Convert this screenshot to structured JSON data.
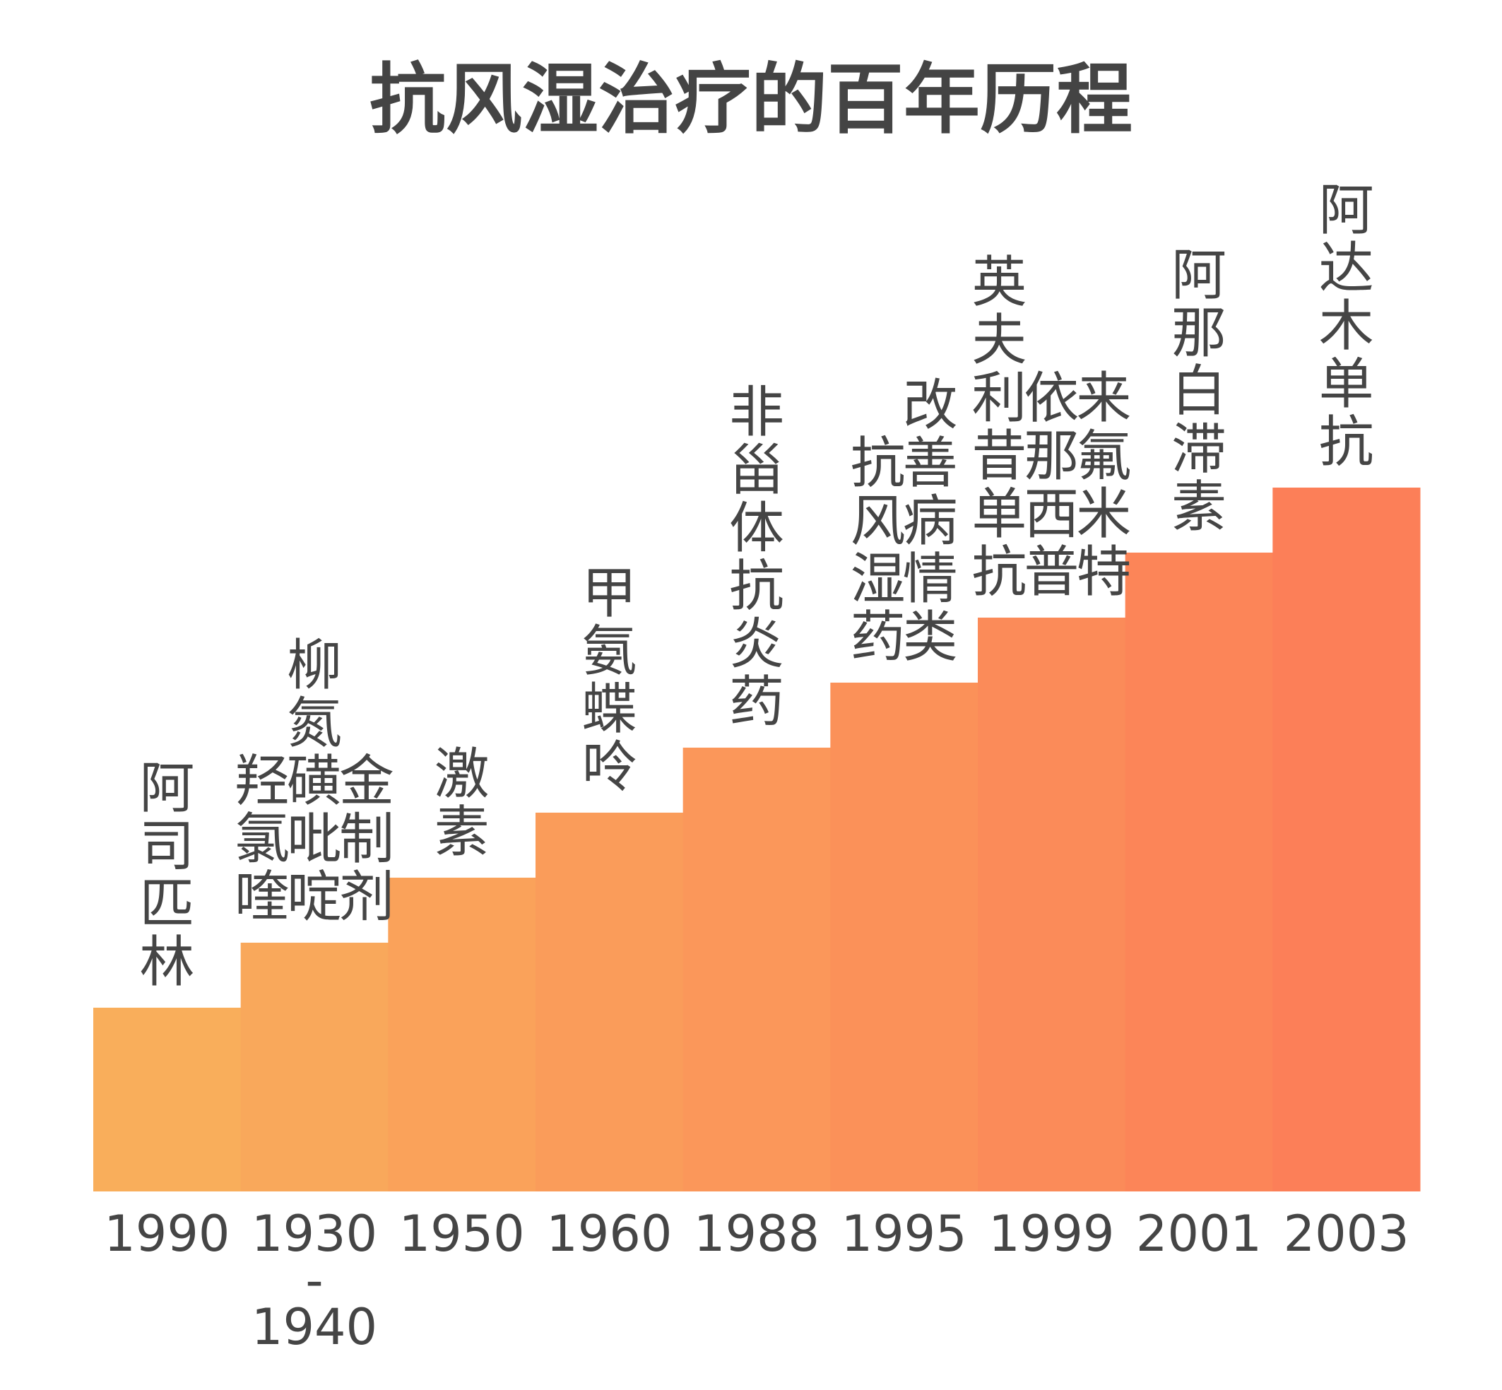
{
  "chart_data": {
    "type": "bar",
    "title": "抗风湿治疗的百年历程",
    "xlabel": "",
    "ylabel": "",
    "ylim": [
      0,
      10
    ],
    "grid": false,
    "legend": "none",
    "colors": {
      "start": "#F9AE5B",
      "end": "#FC7F58",
      "text": "#454545",
      "title": "#444444"
    },
    "categories": [
      [
        "1990"
      ],
      [
        "1930",
        "-",
        "1940"
      ],
      [
        "1950"
      ],
      [
        "1960"
      ],
      [
        "1988"
      ],
      [
        "1995"
      ],
      [
        "1999"
      ],
      [
        "2001"
      ],
      [
        "2003"
      ]
    ],
    "values": [
      1,
      2,
      3,
      4,
      5,
      6,
      7,
      8,
      9
    ],
    "annotations": [
      {
        "columns": [
          "阿司匹林"
        ]
      },
      {
        "columns": [
          "羟氯喹",
          "柳氮磺吡啶",
          "金制剂"
        ]
      },
      {
        "columns": [
          "激素"
        ]
      },
      {
        "columns": [
          "甲氨蝶呤"
        ]
      },
      {
        "columns": [
          "非甾体抗炎药"
        ]
      },
      {
        "columns": [
          "抗风湿药",
          "改善病情类"
        ]
      },
      {
        "columns": [
          "英夫利昔单抗",
          "依那西普",
          "来氟米特"
        ]
      },
      {
        "columns": [
          "阿那白滞素"
        ]
      },
      {
        "columns": [
          "阿达木单抗"
        ]
      }
    ]
  }
}
